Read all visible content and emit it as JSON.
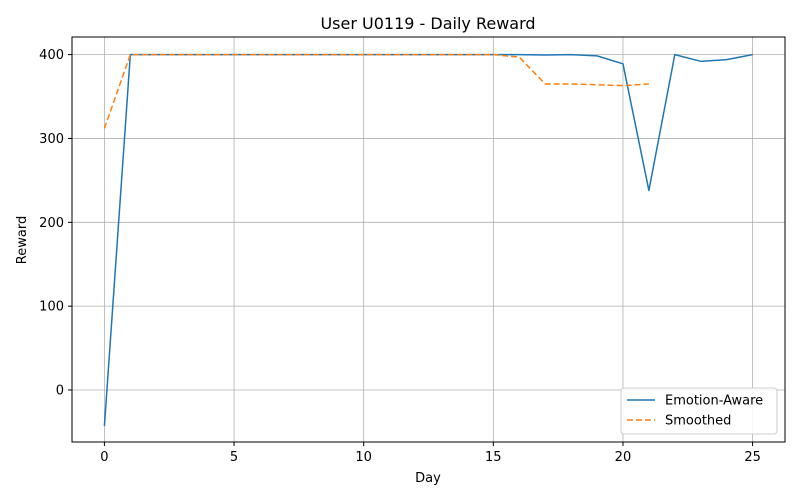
{
  "chart_data": {
    "type": "line",
    "title": "User U0119 - Daily Reward",
    "xlabel": "Day",
    "ylabel": "Reward",
    "xlim": [
      -1.25,
      26.25
    ],
    "ylim": [
      -62,
      421
    ],
    "xticks": [
      0,
      5,
      10,
      15,
      20,
      25
    ],
    "yticks": [
      0,
      100,
      200,
      300,
      400
    ],
    "grid": true,
    "legend_position": "bottom-right",
    "series": [
      {
        "name": "Emotion-Aware",
        "color": "#1f77b4",
        "style": "solid",
        "x": [
          0,
          1,
          2,
          3,
          4,
          5,
          6,
          7,
          8,
          9,
          10,
          11,
          12,
          13,
          14,
          15,
          16,
          17,
          18,
          19,
          20,
          21,
          22,
          23,
          24,
          25
        ],
        "y": [
          -43,
          400,
          400,
          400,
          400,
          400,
          400,
          400,
          400,
          400,
          400,
          400,
          400,
          400,
          400,
          400,
          400,
          399.5,
          400,
          398.5,
          389,
          238,
          400,
          392,
          394,
          400
        ]
      },
      {
        "name": "Smoothed",
        "color": "#ff7f0e",
        "style": "dashed",
        "x": [
          0,
          1,
          2,
          3,
          4,
          5,
          6,
          7,
          8,
          9,
          10,
          11,
          12,
          13,
          14,
          15,
          16,
          17,
          18,
          19,
          20,
          21
        ],
        "y": [
          312,
          400,
          400,
          400,
          400,
          400,
          400,
          400,
          400,
          400,
          400,
          400,
          400,
          400,
          400,
          400,
          397,
          365,
          365,
          364,
          363,
          365
        ]
      }
    ]
  }
}
